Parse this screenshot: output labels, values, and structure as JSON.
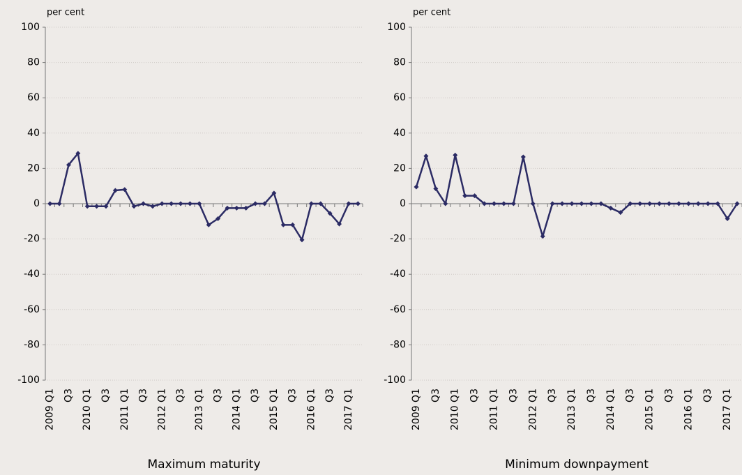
{
  "chart_data": [
    {
      "type": "line",
      "title": "Maximum maturity",
      "y_label": "per cent",
      "categories": [
        "2009 Q1",
        null,
        "Q3",
        null,
        "2010 Q1",
        null,
        "Q3",
        null,
        "2011 Q1",
        null,
        "Q3",
        null,
        "2012 Q1",
        null,
        "Q3",
        null,
        "2013 Q1",
        null,
        "Q3",
        null,
        "2014 Q1",
        null,
        "Q3",
        null,
        "2015 Q1",
        null,
        "Q3",
        null,
        "2016 Q1",
        null,
        "Q3",
        null,
        "2017 Q1",
        null
      ],
      "values": [
        0,
        0,
        22,
        28.5,
        -1.5,
        -1.5,
        -1.5,
        7.5,
        8,
        -1.5,
        0,
        -1.5,
        0,
        0,
        0,
        0,
        0,
        -12,
        -8.5,
        -2.5,
        -2.5,
        -2.5,
        0,
        0,
        6,
        -12,
        -12,
        -20.5,
        0,
        0,
        -5.5,
        -11.5,
        0,
        0
      ],
      "color": "#2b2b64",
      "ylim": [
        -100,
        100
      ],
      "yticks": [
        -100,
        -80,
        -60,
        -40,
        -20,
        0,
        20,
        40,
        60,
        80,
        100
      ],
      "grid": true
    },
    {
      "type": "line",
      "title": "Minimum downpayment",
      "y_label": "per cent",
      "categories": [
        "2009 Q1",
        null,
        "Q3",
        null,
        "2010 Q1",
        null,
        "Q3",
        null,
        "2011 Q1",
        null,
        "Q3",
        null,
        "2012 Q1",
        null,
        "Q3",
        null,
        "2013 Q1",
        null,
        "Q3",
        null,
        "2014 Q1",
        null,
        "Q3",
        null,
        "2015 Q1",
        null,
        "Q3",
        null,
        "2016 Q1",
        null,
        "Q3",
        null,
        "2017 Q1",
        null
      ],
      "values": [
        9.5,
        27,
        8.5,
        0,
        27.5,
        4.5,
        4.5,
        0,
        0,
        0,
        0,
        26.5,
        0,
        -18.5,
        0,
        0,
        0,
        0,
        0,
        0,
        -2.5,
        -5,
        0,
        0,
        0,
        0,
        0,
        0,
        0,
        0,
        0,
        0,
        -8.5,
        0
      ],
      "color": "#2b2b64",
      "ylim": [
        -100,
        100
      ],
      "yticks": [
        -100,
        -80,
        -60,
        -40,
        -20,
        0,
        20,
        40,
        60,
        80,
        100
      ],
      "grid": true
    }
  ]
}
